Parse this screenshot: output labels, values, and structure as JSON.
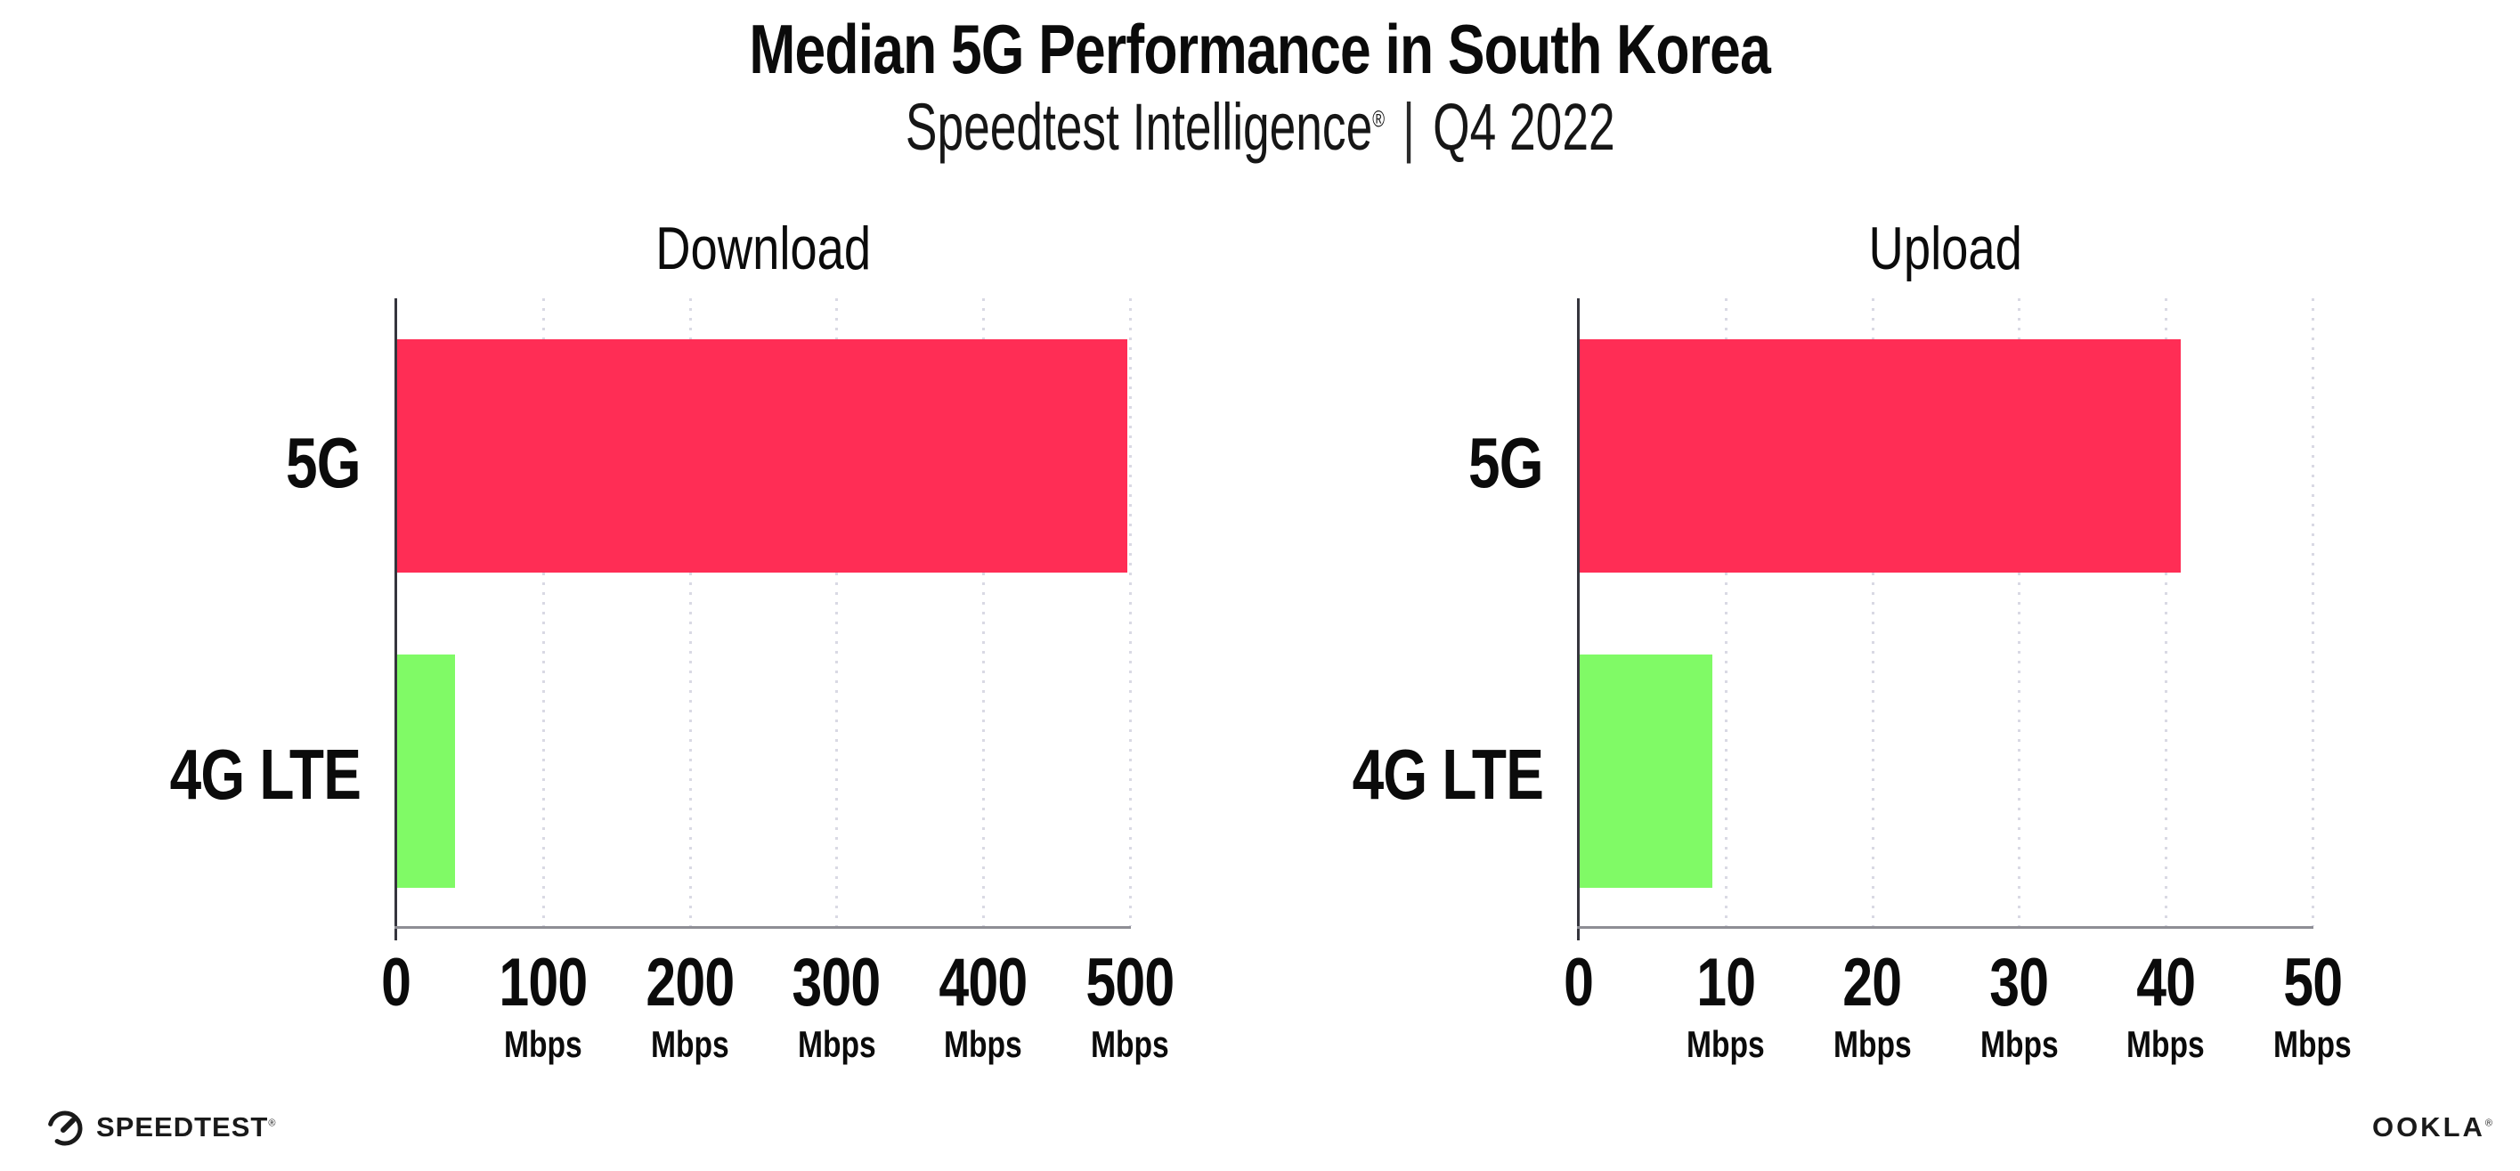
{
  "header": {
    "title": "Median 5G Performance in South Korea",
    "subtitle_brand": "Speedtest Intelligence",
    "subtitle_reg": "®",
    "subtitle_divider": "|",
    "subtitle_period": "Q4 2022"
  },
  "chart_data": [
    {
      "type": "bar",
      "orientation": "horizontal",
      "title": "Download",
      "categories": [
        "5G",
        "4G LTE"
      ],
      "values": [
        498,
        40
      ],
      "unit": "Mbps",
      "xlim": [
        0,
        500
      ],
      "ticks": [
        0,
        100,
        200,
        300,
        400,
        500
      ],
      "bar_colors": [
        "#FF2D55",
        "#80FA66"
      ],
      "grid": "dotted-vertical",
      "legend": false
    },
    {
      "type": "bar",
      "orientation": "horizontal",
      "title": "Upload",
      "categories": [
        "5G",
        "4G LTE"
      ],
      "values": [
        41,
        9.1
      ],
      "unit": "Mbps",
      "xlim": [
        0,
        50
      ],
      "ticks": [
        0,
        10,
        20,
        30,
        40,
        50
      ],
      "bar_colors": [
        "#FF2D55",
        "#80FA66"
      ],
      "grid": "dotted-vertical",
      "legend": false
    }
  ],
  "footer": {
    "speedtest_label": "SPEEDTEST",
    "speedtest_reg": "®",
    "ookla_label": "OOKLA",
    "ookla_reg": "®"
  },
  "colors": {
    "bar_5g": "#FF2D55",
    "bar_4g_lte": "#80FA66",
    "x_axis_line": "#8E8E95",
    "y_axis_line": "#35353D",
    "gridline": "#D9D9E4",
    "background": "#FFFFFF",
    "text": "#0B0B0B"
  }
}
